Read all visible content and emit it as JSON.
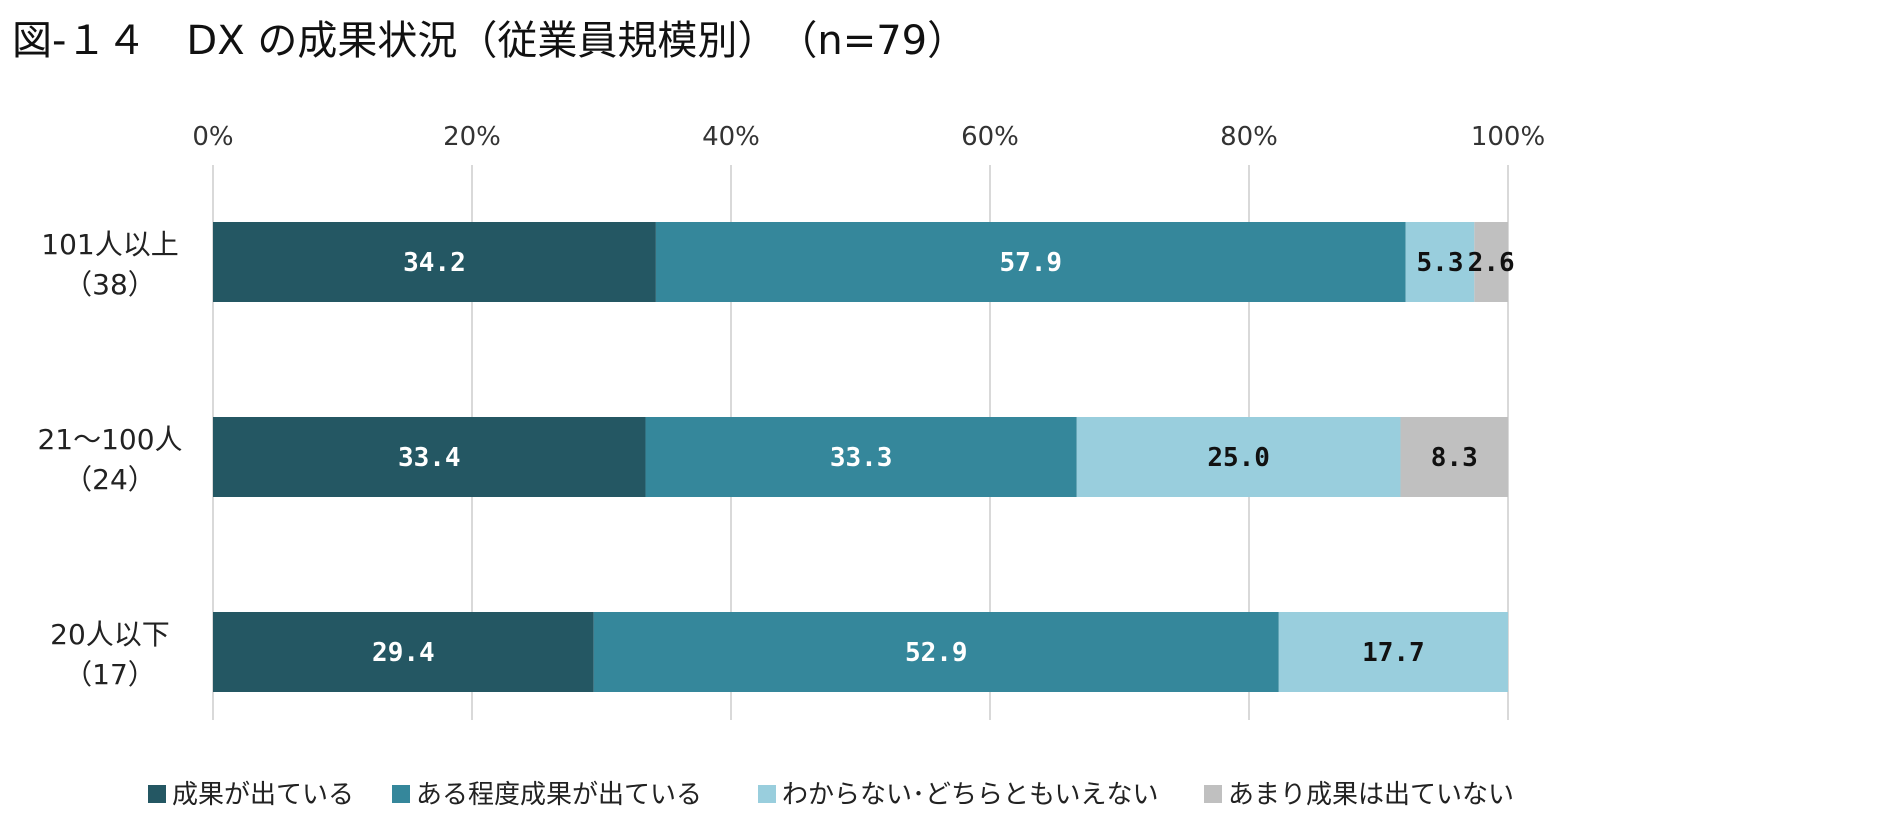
{
  "title": "図-１４　DX の成果状況（従業員規模別）　（n=79）",
  "chart_data": {
    "type": "bar",
    "orientation": "horizontal",
    "stacked": "percent",
    "title": "図-１４　DX の成果状況（従業員規模別）　（n=79）",
    "xlim": [
      0,
      100
    ],
    "x_ticks": [
      "0%",
      "20%",
      "40%",
      "60%",
      "80%",
      "100%"
    ],
    "grid": true,
    "legend_position": "bottom",
    "categories": [
      {
        "label": "101人以上",
        "count": "（38）"
      },
      {
        "label": "21～100人",
        "count": "（24）"
      },
      {
        "label": "20人以下",
        "count": "（17）"
      }
    ],
    "series": [
      {
        "name": "成果が出ている",
        "color": "#245763",
        "label_color": "#ffffff",
        "values": [
          34.2,
          33.4,
          29.4
        ],
        "labels": [
          "34.2",
          "33.4",
          "29.4"
        ]
      },
      {
        "name": "ある程度成果が出ている",
        "color": "#35879b",
        "label_color": "#ffffff",
        "values": [
          57.9,
          33.3,
          52.9
        ],
        "labels": [
          "57.9",
          "33.3",
          "52.9"
        ]
      },
      {
        "name": "わからない･どちらともいえない",
        "color": "#99cedd",
        "label_color": "#111111",
        "values": [
          5.3,
          25.0,
          17.7
        ],
        "labels": [
          "5.3",
          "25.0",
          "17.7"
        ]
      },
      {
        "name": "あまり成果は出ていない",
        "color": "#c0c0c0",
        "label_color": "#111111",
        "values": [
          2.6,
          8.3,
          0
        ],
        "labels": [
          "2.6",
          "8.3",
          ""
        ]
      }
    ]
  }
}
